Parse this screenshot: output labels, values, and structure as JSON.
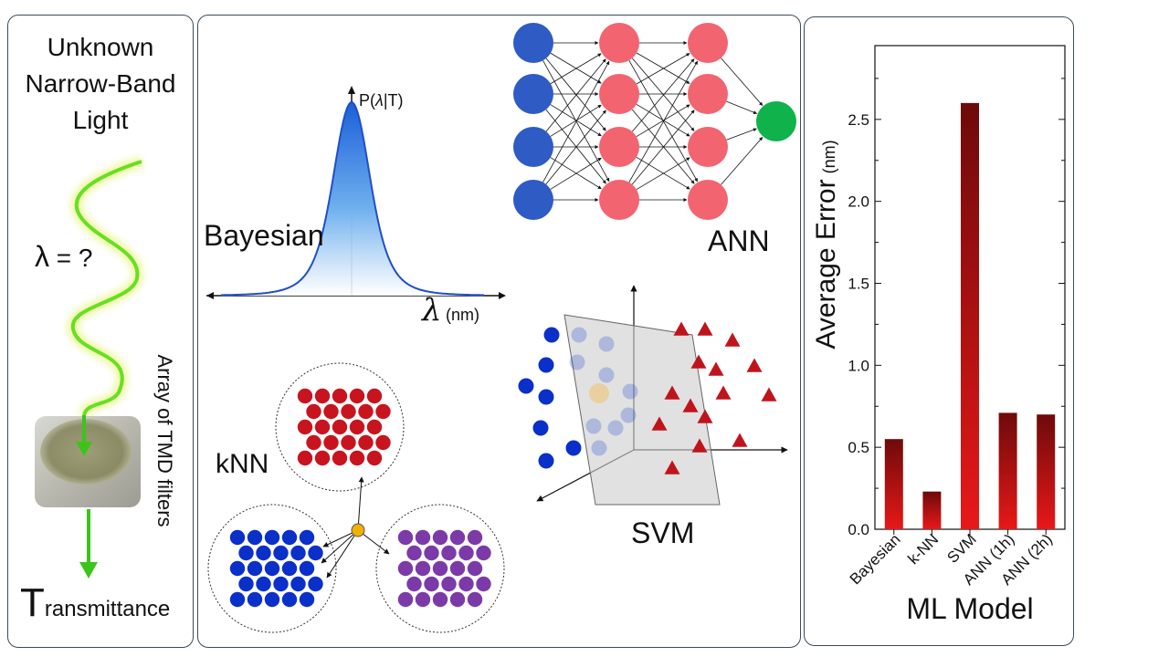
{
  "left_panel": {
    "title_lines": [
      "Unknown",
      "Narrow-Band",
      "Light"
    ],
    "lambda_symbol": "λ",
    "lambda_suffix": " = ?",
    "filter_label": "Array of TMD filters",
    "output_big_letter": "T",
    "output_rest": "ransmittance"
  },
  "middle_panel": {
    "bayesian_label": "Bayesian",
    "bayes_prob_prefix": "P(",
    "bayes_prob_lambda": "λ",
    "bayes_prob_suffix": "|T)",
    "bayes_x_symbol": "λ",
    "bayes_x_unit": "(nm)",
    "ann_label": "ANN",
    "knn_label": "kNN",
    "svm_label": "SVM"
  },
  "colors": {
    "bayes_curve": "#1f4fc8",
    "ann_input": "#2e5bc4",
    "ann_hidden": "#f26470",
    "ann_output": "#10b24c",
    "knn_red": "#c8141e",
    "knn_blue": "#0b2fc9",
    "knn_purple": "#7b3aa8",
    "knn_query": "#f2b000",
    "svm_blue": "#0b2fc9",
    "svm_red": "#c0141c",
    "bar_dark": "#6e0a0a",
    "bar_light": "#e81818",
    "light_wave": "#66e020"
  },
  "chart_data": {
    "type": "bar",
    "categories": [
      "Bayesian",
      "k-NN",
      "SVM",
      "ANN (1h)",
      "ANN (2h)"
    ],
    "values": [
      0.55,
      0.23,
      2.6,
      0.71,
      0.7
    ],
    "ylabel_main": "Average Error",
    "ylabel_unit": "(nm)",
    "xlabel": "ML Model",
    "ylim": [
      0,
      2.95
    ],
    "yticks": [
      0.0,
      0.5,
      1.0,
      1.5,
      2.0,
      2.5
    ],
    "ytick_labels": [
      "0.0",
      "0.5",
      "1.0",
      "1.5",
      "2.0",
      "2.5"
    ],
    "grid": false
  }
}
